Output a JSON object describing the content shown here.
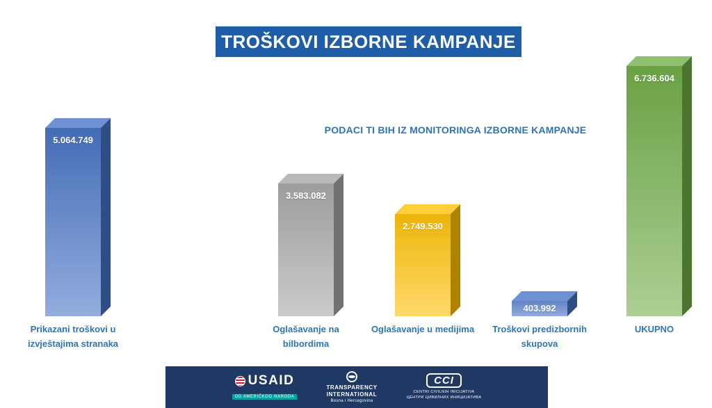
{
  "title": "TROŠKOVI IZBORNE KAMPANJE",
  "subtitle": "PODACI TI BIH IZ MONITORINGA IZBORNE KAMPANJE",
  "colors": {
    "title_bg": "#1E5EA8",
    "accent_text": "#2E75B6",
    "footer_bg": "#1F3864",
    "bar_blue": "#4472C4",
    "bar_gray": "#A6A6A6",
    "bar_yellow": "#FFC000",
    "bar_green": "#70AD47"
  },
  "chart_data": {
    "type": "bar",
    "style": "3d-column",
    "title": "TROŠKOVI IZBORNE KAMPANJE",
    "subtitle": "PODACI TI BIH IZ MONITORINGA IZBORNE KAMPANJE",
    "categories": [
      "Prikazani troškovi u izvještajima stranaka",
      "Oglašavanje na bilbordima",
      "Oglašavanje u medijima",
      "Troškovi predizbornih skupova",
      "UKUPNO"
    ],
    "category_labels": [
      "Prikazani troškovi u\nizvještajima stranaka",
      "Oglašavanje na\nbilbordima",
      "Oglašavanje u medijima",
      "Troškovi predizbornih\nskupova",
      "UKUPNO"
    ],
    "values": [
      5064749,
      3583082,
      2749530,
      403992,
      6736604
    ],
    "value_labels": [
      "5.064.749",
      "3.583.082",
      "2.749.530",
      "403.992",
      "6.736.604"
    ],
    "bar_colors": [
      "#4472C4",
      "#A6A6A6",
      "#FFC000",
      "#4472C4",
      "#70AD47"
    ],
    "ylim": [
      0,
      6736604
    ],
    "grid": false,
    "legend": false
  },
  "footer": {
    "usaid": {
      "name": "USAID",
      "sub": "OD AMERIČKOG NARODA"
    },
    "ti": {
      "line1": "TRANSPARENCY",
      "line2": "INTERNATIONAL",
      "sub": "Bosna i Hercegovina"
    },
    "cci": {
      "name": "CCI",
      "sub1": "CENTRI CIVILNIH INICIJATIVA",
      "sub2": "ЦЕНТРИ ЦИВИЛНИХ ИНИЦИЈАТИВА"
    }
  }
}
